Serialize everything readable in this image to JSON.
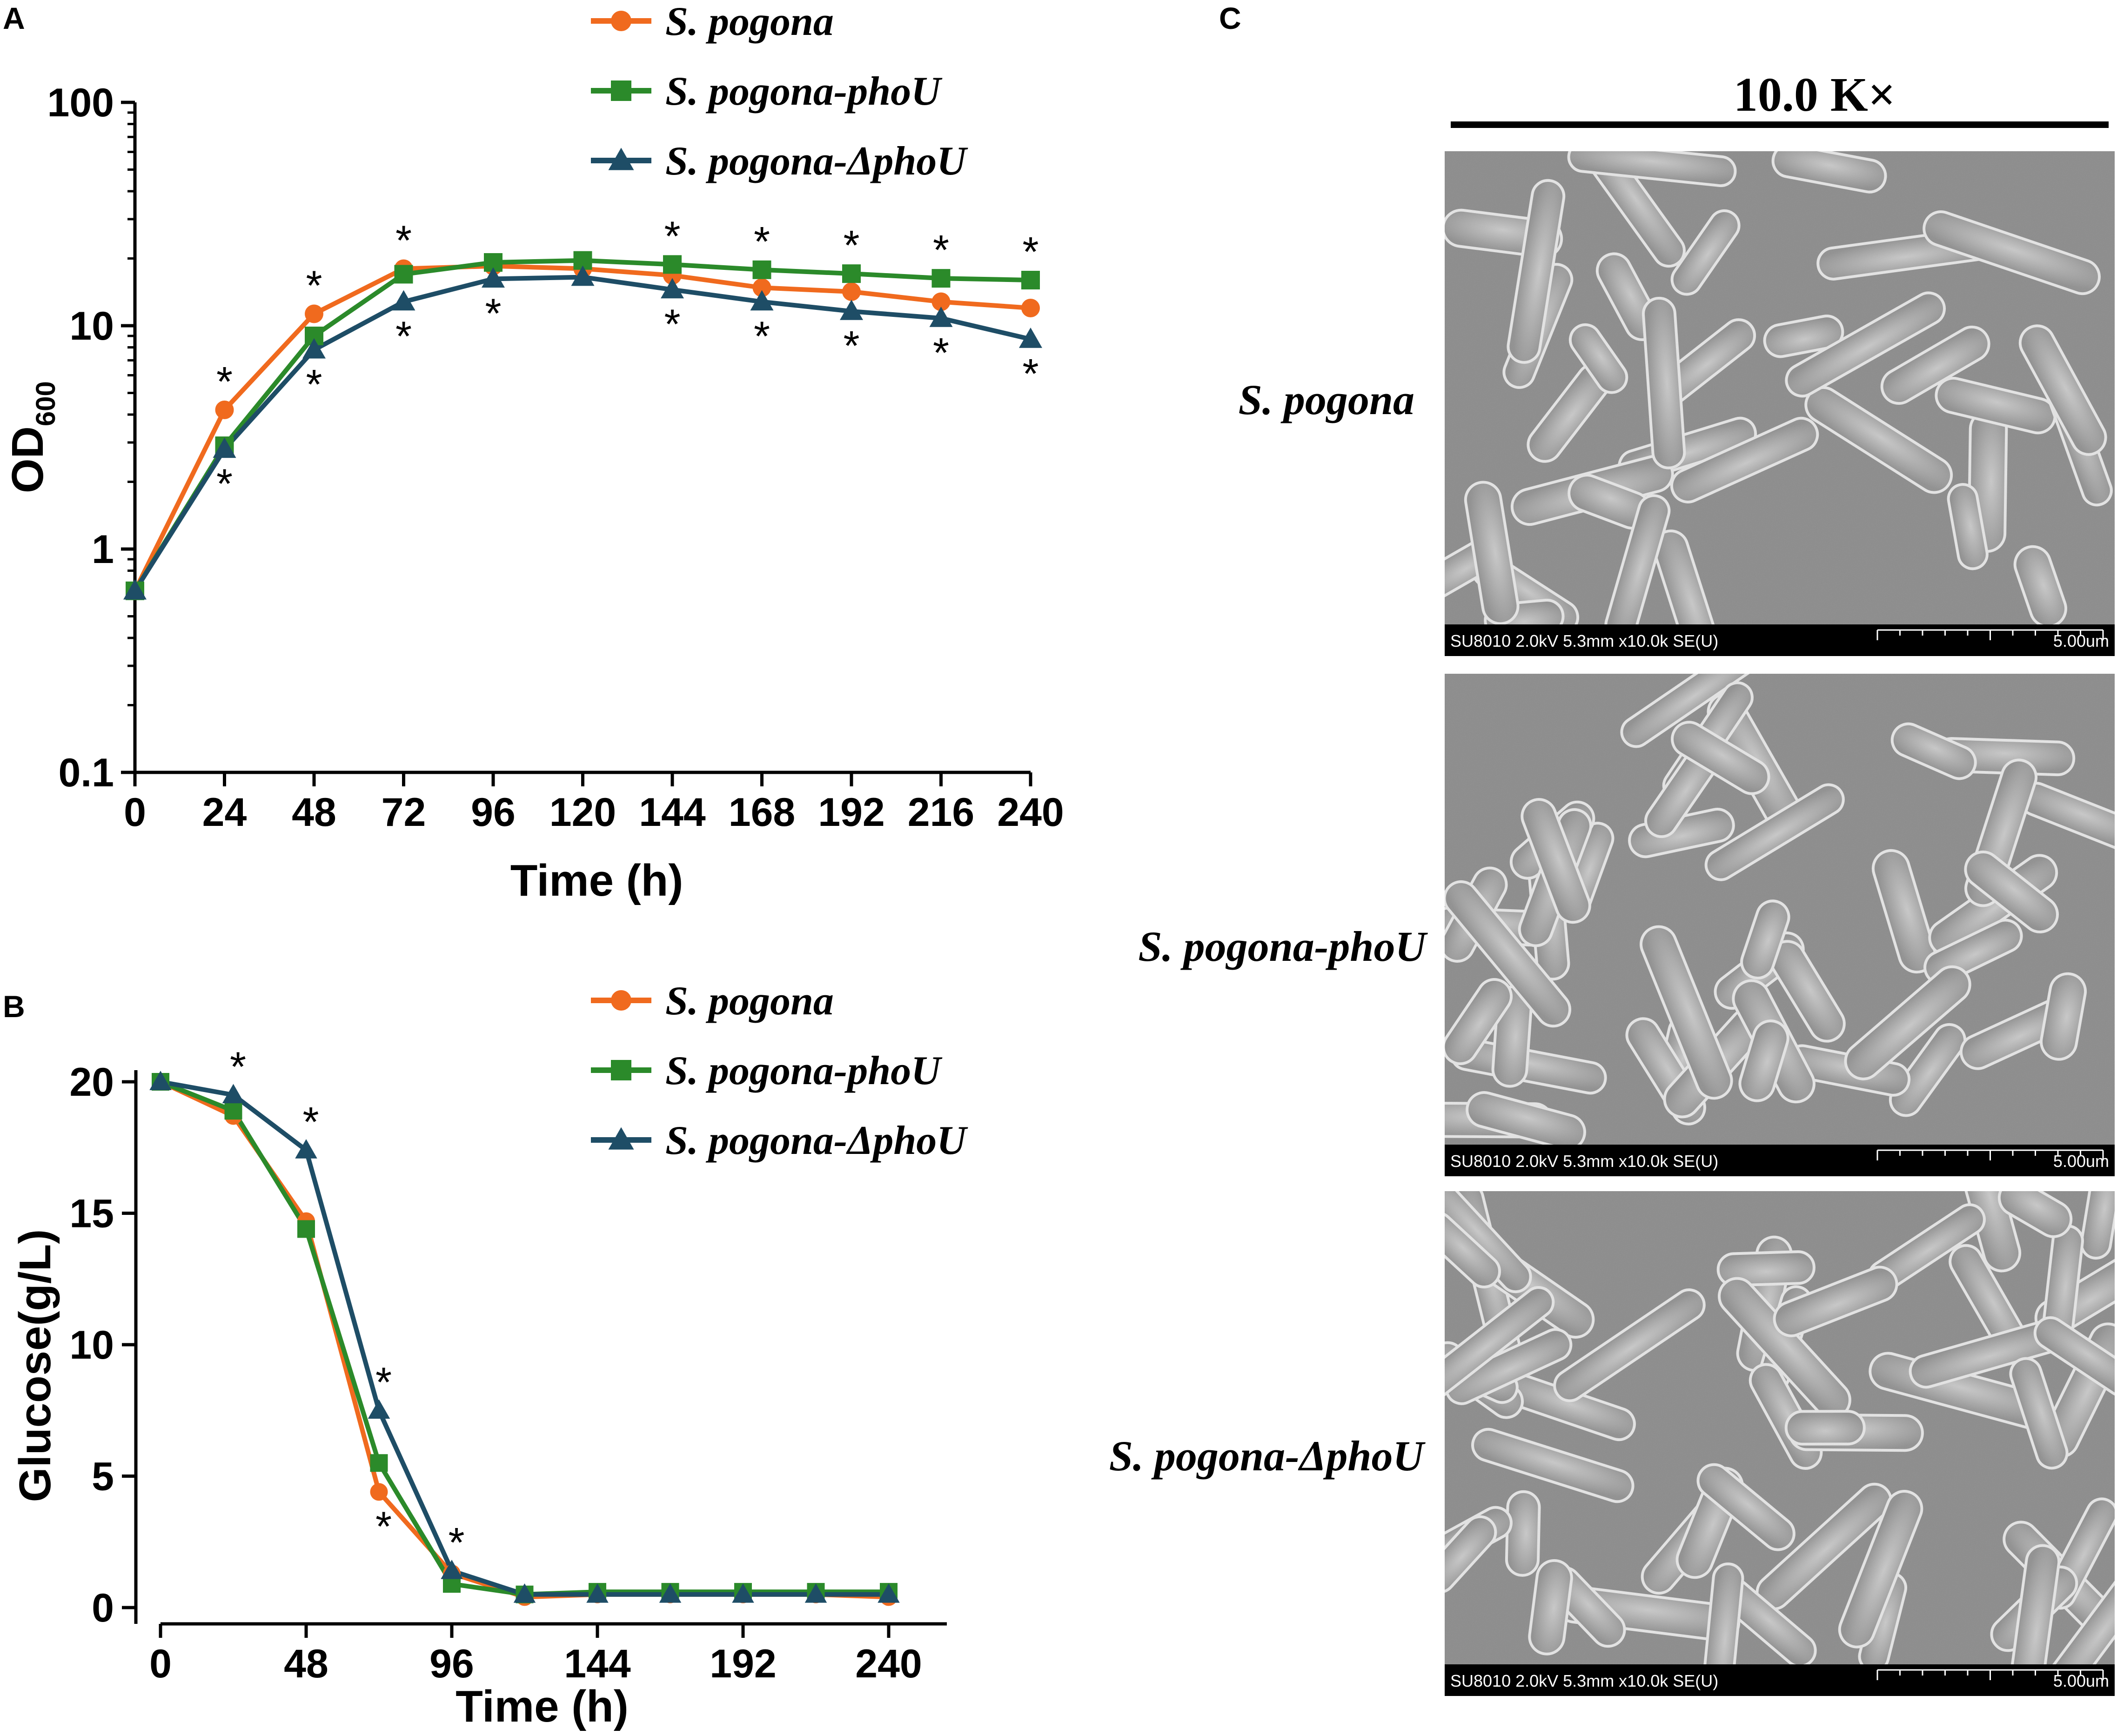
{
  "panels": {
    "A": "A",
    "B": "B",
    "C": "C"
  },
  "colors": {
    "s_pogona": "#F06A1E",
    "s_pogona_phoU": "#2B8A2A",
    "s_pogona_dphoU": "#1E4D66",
    "axis": "#000000"
  },
  "chart_data": [
    {
      "panel": "A",
      "type": "line",
      "yscale": "log",
      "xlabel": "Time (h)",
      "ylabel": "OD",
      "ylabel_subscript": "600",
      "x": [
        0,
        24,
        48,
        72,
        96,
        120,
        144,
        168,
        192,
        216,
        240
      ],
      "xlim": [
        0,
        240
      ],
      "ylim": [
        0.1,
        100
      ],
      "xticks": [
        "0",
        "24",
        "48",
        "72",
        "96",
        "120",
        "144",
        "168",
        "192",
        "216",
        "240"
      ],
      "yticks": [
        0.1,
        1,
        10,
        100
      ],
      "ytick_labels": [
        "0.1",
        "1",
        "10",
        "100"
      ],
      "grid": false,
      "legend_position": "top",
      "series": [
        {
          "name": "S. pogona",
          "marker": "circle",
          "values": [
            0.65,
            4.2,
            11.3,
            18.0,
            18.5,
            18.0,
            16.8,
            14.8,
            14.2,
            12.8,
            12.0
          ]
        },
        {
          "name": "S. pogona-phoU",
          "marker": "square",
          "values": [
            0.65,
            2.9,
            9.0,
            17.0,
            19.2,
            19.6,
            18.8,
            17.8,
            17.1,
            16.3,
            16.0
          ]
        },
        {
          "name": "S. pogona-ΔphoU",
          "marker": "triangle",
          "values": [
            0.65,
            2.8,
            7.8,
            12.8,
            16.2,
            16.5,
            14.5,
            12.8,
            11.6,
            10.8,
            8.7
          ]
        }
      ],
      "significance": [
        {
          "x": 24,
          "value": 4.2,
          "pos": "above"
        },
        {
          "x": 24,
          "value": 2.8,
          "pos": "below"
        },
        {
          "x": 48,
          "value": 11.3,
          "pos": "above"
        },
        {
          "x": 48,
          "value": 7.8,
          "pos": "below"
        },
        {
          "x": 72,
          "value": 18.0,
          "pos": "above"
        },
        {
          "x": 72,
          "value": 12.8,
          "pos": "below"
        },
        {
          "x": 96,
          "value": 16.2,
          "pos": "below"
        },
        {
          "x": 144,
          "value": 18.8,
          "pos": "above"
        },
        {
          "x": 144,
          "value": 14.5,
          "pos": "below"
        },
        {
          "x": 168,
          "value": 17.8,
          "pos": "above"
        },
        {
          "x": 168,
          "value": 12.8,
          "pos": "below"
        },
        {
          "x": 192,
          "value": 17.1,
          "pos": "above"
        },
        {
          "x": 192,
          "value": 11.6,
          "pos": "below"
        },
        {
          "x": 216,
          "value": 16.3,
          "pos": "above"
        },
        {
          "x": 216,
          "value": 10.8,
          "pos": "below"
        },
        {
          "x": 240,
          "value": 16.0,
          "pos": "above"
        },
        {
          "x": 240,
          "value": 8.7,
          "pos": "below"
        }
      ]
    },
    {
      "panel": "B",
      "type": "line",
      "xlabel": "Time (h)",
      "ylabel": "Glucose(g/L)",
      "x": [
        0,
        24,
        48,
        72,
        96,
        120,
        144,
        168,
        192,
        216,
        240
      ],
      "xlim": [
        0,
        240
      ],
      "ylim": [
        0,
        20
      ],
      "xticks": [
        "0",
        "48",
        "96",
        "144",
        "192",
        "240"
      ],
      "xtick_values": [
        0,
        48,
        96,
        144,
        192,
        240
      ],
      "yticks": [
        "0",
        "5",
        "10",
        "15",
        "20"
      ],
      "ytick_values": [
        0,
        5,
        10,
        15,
        20
      ],
      "grid": false,
      "legend_position": "top",
      "series": [
        {
          "name": "S. pogona",
          "marker": "circle",
          "values": [
            20.0,
            18.7,
            14.7,
            4.4,
            1.3,
            0.4,
            0.5,
            0.5,
            0.5,
            0.5,
            0.4
          ]
        },
        {
          "name": "S. pogona-phoU",
          "marker": "square",
          "values": [
            20.0,
            18.9,
            14.4,
            5.5,
            0.9,
            0.5,
            0.6,
            0.6,
            0.6,
            0.6,
            0.6
          ]
        },
        {
          "name": "S. pogona-ΔphoU",
          "marker": "triangle",
          "values": [
            20.0,
            19.5,
            17.4,
            7.5,
            1.4,
            0.5,
            0.5,
            0.5,
            0.5,
            0.5,
            0.5
          ]
        }
      ],
      "significance": [
        {
          "x": 24,
          "value": 19.5,
          "pos": "above"
        },
        {
          "x": 48,
          "value": 17.4,
          "pos": "above"
        },
        {
          "x": 72,
          "value": 7.5,
          "pos": "above"
        },
        {
          "x": 72,
          "value": 4.4,
          "pos": "below"
        },
        {
          "x": 96,
          "value": 1.4,
          "pos": "above"
        }
      ]
    }
  ],
  "panel_c": {
    "magnification": "10.0 K×",
    "images": [
      {
        "label": "S. pogona",
        "info": "SU8010 2.0kV 5.3mm x10.0k SE(U)",
        "scale": "5.00um"
      },
      {
        "label": "S. pogona-phoU",
        "info": "SU8010 2.0kV 5.3mm x10.0k SE(U)",
        "scale": "5.00um"
      },
      {
        "label": "S. pogona-ΔphoU",
        "info": "SU8010 2.0kV 5.3mm x10.0k SE(U)",
        "scale": "5.00um"
      }
    ]
  }
}
